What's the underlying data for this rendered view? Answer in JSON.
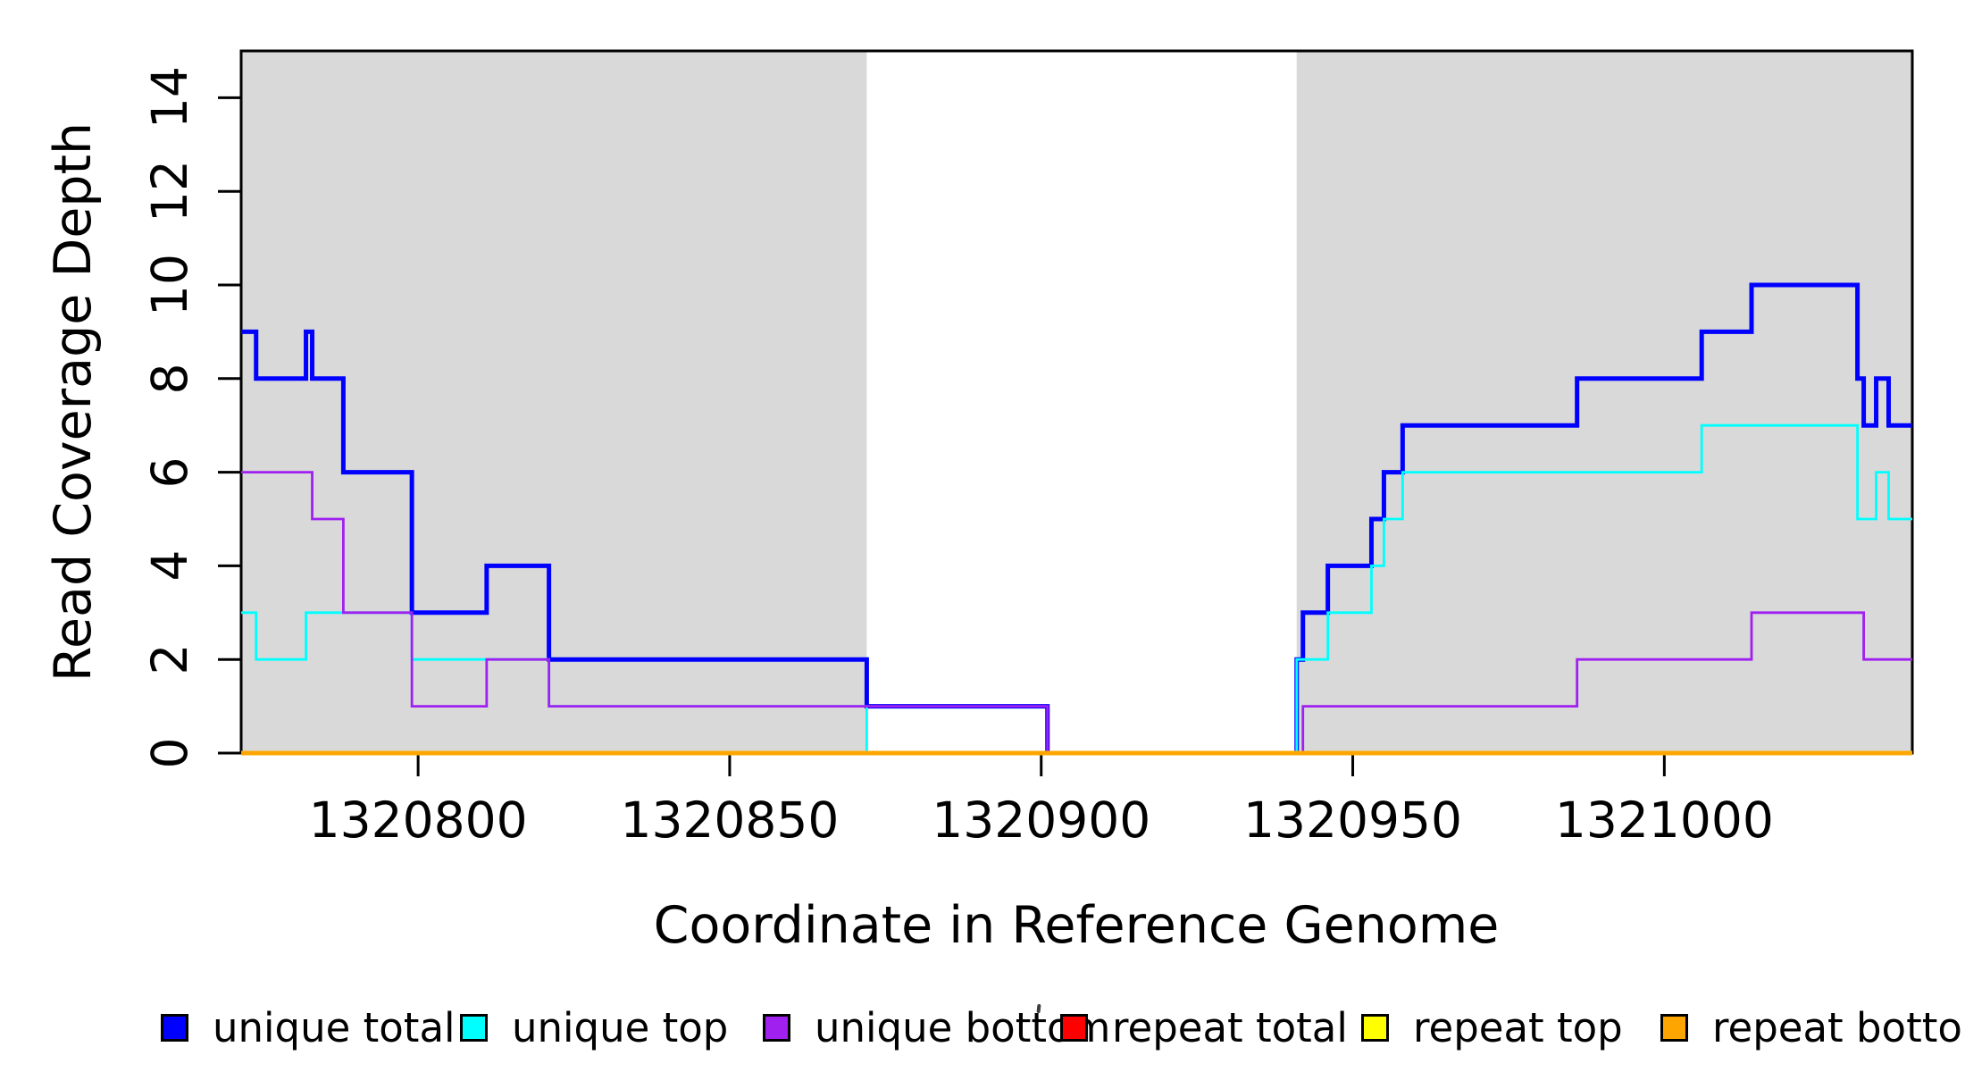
{
  "chart_data": {
    "type": "line",
    "step": true,
    "title": "",
    "xlabel": "Coordinate in Reference Genome",
    "ylabel": "Read Coverage Depth",
    "xlim": [
      1320771.6,
      1321039.8
    ],
    "ylim": [
      0,
      15
    ],
    "x_ticks": [
      1320800,
      1320850,
      1320900,
      1320950,
      1321000
    ],
    "y_ticks": [
      0,
      2,
      4,
      6,
      8,
      10,
      12,
      14
    ],
    "grid": false,
    "legend_position": "bottom",
    "background_color": "#FFFFFF",
    "shaded_region_color": "#D9D9D9",
    "frame_color": "#000000",
    "shaded_regions": [
      {
        "start": 1320771.6,
        "end": 1320872
      },
      {
        "start": 1320941,
        "end": 1321039.8
      }
    ],
    "series": [
      {
        "name": "unique total",
        "color": "#0000FF",
        "segments": [
          [
            1320771.6,
            1320774,
            9
          ],
          [
            1320774,
            1320782,
            8
          ],
          [
            1320782,
            1320783,
            9
          ],
          [
            1320783,
            1320788,
            8
          ],
          [
            1320788,
            1320799,
            6
          ],
          [
            1320799,
            1320811,
            3
          ],
          [
            1320811,
            1320821,
            4
          ],
          [
            1320821,
            1320872,
            2
          ],
          [
            1320872,
            1320901,
            1
          ],
          [
            1320901,
            1320941,
            0
          ],
          [
            1320941,
            1320942,
            2
          ],
          [
            1320942,
            1320946,
            3
          ],
          [
            1320946,
            1320953,
            4
          ],
          [
            1320953,
            1320955,
            5
          ],
          [
            1320955,
            1320958,
            6
          ],
          [
            1320958,
            1320986,
            7
          ],
          [
            1320986,
            1321006,
            8
          ],
          [
            1321006,
            1321014,
            9
          ],
          [
            1321014,
            1321031,
            10
          ],
          [
            1321031,
            1321032,
            8
          ],
          [
            1321032,
            1321034,
            7
          ],
          [
            1321034,
            1321036,
            8
          ],
          [
            1321036,
            1321039.8,
            7
          ]
        ]
      },
      {
        "name": "unique top",
        "color": "#00FFFF",
        "segments": [
          [
            1320771.6,
            1320774,
            3
          ],
          [
            1320774,
            1320782,
            2
          ],
          [
            1320782,
            1320799,
            3
          ],
          [
            1320799,
            1320821,
            2
          ],
          [
            1320821,
            1320872,
            1
          ],
          [
            1320872,
            1320941,
            0
          ],
          [
            1320941,
            1320946,
            2
          ],
          [
            1320946,
            1320953,
            3
          ],
          [
            1320953,
            1320955,
            4
          ],
          [
            1320955,
            1320958,
            5
          ],
          [
            1320958,
            1321006,
            6
          ],
          [
            1321006,
            1321031,
            7
          ],
          [
            1321031,
            1321034,
            5
          ],
          [
            1321034,
            1321036,
            6
          ],
          [
            1321036,
            1321039.8,
            5
          ]
        ]
      },
      {
        "name": "unique bottom",
        "color": "#A020F0",
        "segments": [
          [
            1320771.6,
            1320783,
            6
          ],
          [
            1320783,
            1320788,
            5
          ],
          [
            1320788,
            1320799,
            3
          ],
          [
            1320799,
            1320811,
            1
          ],
          [
            1320811,
            1320821,
            2
          ],
          [
            1320821,
            1320901,
            1
          ],
          [
            1320901,
            1320942,
            0
          ],
          [
            1320942,
            1320986,
            1
          ],
          [
            1320986,
            1321014,
            2
          ],
          [
            1321014,
            1321032,
            3
          ],
          [
            1321032,
            1321039.8,
            2
          ]
        ]
      },
      {
        "name": "repeat total",
        "color": "#FF0000",
        "segments": [
          [
            1320771.6,
            1321039.8,
            0
          ]
        ]
      },
      {
        "name": "repeat top",
        "color": "#FFFF00",
        "segments": [
          [
            1320771.6,
            1321039.8,
            0
          ]
        ]
      },
      {
        "name": "repeat bottom",
        "color": "#FFA500",
        "segments": [
          [
            1320771.6,
            1321039.8,
            0
          ]
        ]
      }
    ]
  }
}
